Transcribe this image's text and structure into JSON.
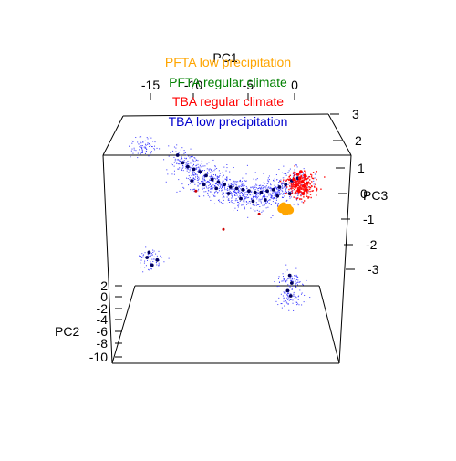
{
  "chart_data": {
    "type": "scatter",
    "projection": "3d",
    "title": "",
    "xlabel": "PC1",
    "ylabel": "PC2",
    "zlabel": "PC3",
    "x_ticks": [
      "-15",
      "-10",
      "-5",
      "0"
    ],
    "y_ticks": [
      "2",
      "0",
      "-2",
      "-4",
      "-6",
      "-8",
      "-10"
    ],
    "z_ticks": [
      "3",
      "2",
      "1",
      "0",
      "-1",
      "-2",
      "-3"
    ],
    "xlim": [
      -17,
      2
    ],
    "ylim": [
      -10,
      2
    ],
    "zlim": [
      -3.5,
      3.2
    ],
    "grid": false,
    "legend_position": "top-center",
    "legend": [
      {
        "label": "PFTA low precipitation",
        "color": "#ffa500"
      },
      {
        "label": "PFTA regular climate",
        "color": "#008000"
      },
      {
        "label": "TBA regular climate",
        "color": "#ff0000"
      },
      {
        "label": "TBA low precipitation",
        "color": "#0000cd"
      }
    ],
    "series": [
      {
        "name": "TBA low precipitation",
        "color": "#0000cd",
        "marker": "small",
        "points": [
          [
            -11.5,
            1.2
          ],
          [
            -11.0,
            1.05
          ],
          [
            -10.4,
            0.95
          ],
          [
            -9.8,
            0.85
          ],
          [
            -9.2,
            0.7
          ],
          [
            -8.6,
            0.55
          ],
          [
            -8.0,
            0.45
          ],
          [
            -7.4,
            0.35
          ],
          [
            -6.8,
            0.25
          ],
          [
            -6.2,
            0.2
          ],
          [
            -5.6,
            0.15
          ],
          [
            -5.0,
            0.1
          ],
          [
            -4.4,
            0.05
          ],
          [
            -3.8,
            0.05
          ],
          [
            -3.2,
            0.1
          ],
          [
            -2.6,
            0.15
          ],
          [
            -2.0,
            0.25
          ],
          [
            -1.4,
            0.35
          ],
          [
            -0.8,
            0.5
          ],
          [
            -0.2,
            0.6
          ],
          [
            -10.6,
            0.5
          ],
          [
            -9.4,
            0.35
          ],
          [
            -8.2,
            0.2
          ],
          [
            -7.0,
            0.0
          ],
          [
            -5.8,
            -0.2
          ],
          [
            -4.6,
            -0.3
          ],
          [
            -3.4,
            -0.25
          ],
          [
            -2.2,
            -0.1
          ],
          [
            -1.0,
            0.0
          ],
          [
            -12.0,
            1.5
          ],
          [
            -15.0,
            -2.5
          ],
          [
            -14.5,
            -2.8
          ],
          [
            -14.0,
            -2.6
          ],
          [
            -14.8,
            -2.3
          ],
          [
            -1.0,
            -3.2
          ],
          [
            -0.8,
            -3.5
          ],
          [
            -1.2,
            -3.8
          ],
          [
            -0.9,
            -4.0
          ]
        ]
      },
      {
        "name": "TBA regular climate",
        "color": "#ff0000",
        "marker": "small",
        "points": [
          [
            -0.2,
            0.75
          ],
          [
            0.0,
            0.6
          ],
          [
            0.2,
            0.45
          ],
          [
            0.4,
            0.3
          ],
          [
            0.6,
            0.15
          ],
          [
            -0.4,
            0.3
          ],
          [
            -0.1,
            0.1
          ],
          [
            0.3,
            0.0
          ],
          [
            0.7,
            0.4
          ],
          [
            -0.6,
            0.55
          ],
          [
            0.1,
            0.85
          ],
          [
            0.5,
            0.7
          ]
        ]
      },
      {
        "name": "PFTA low precipitation",
        "color": "#ffa500",
        "marker": "large",
        "points": [
          [
            -1.8,
            -0.6
          ],
          [
            -1.4,
            -0.7
          ],
          [
            -1.0,
            -0.65
          ],
          [
            -1.6,
            -0.5
          ],
          [
            -1.2,
            -0.55
          ]
        ]
      },
      {
        "name": "PFTA regular climate",
        "color": "#008000",
        "marker": "large",
        "points": []
      }
    ]
  }
}
